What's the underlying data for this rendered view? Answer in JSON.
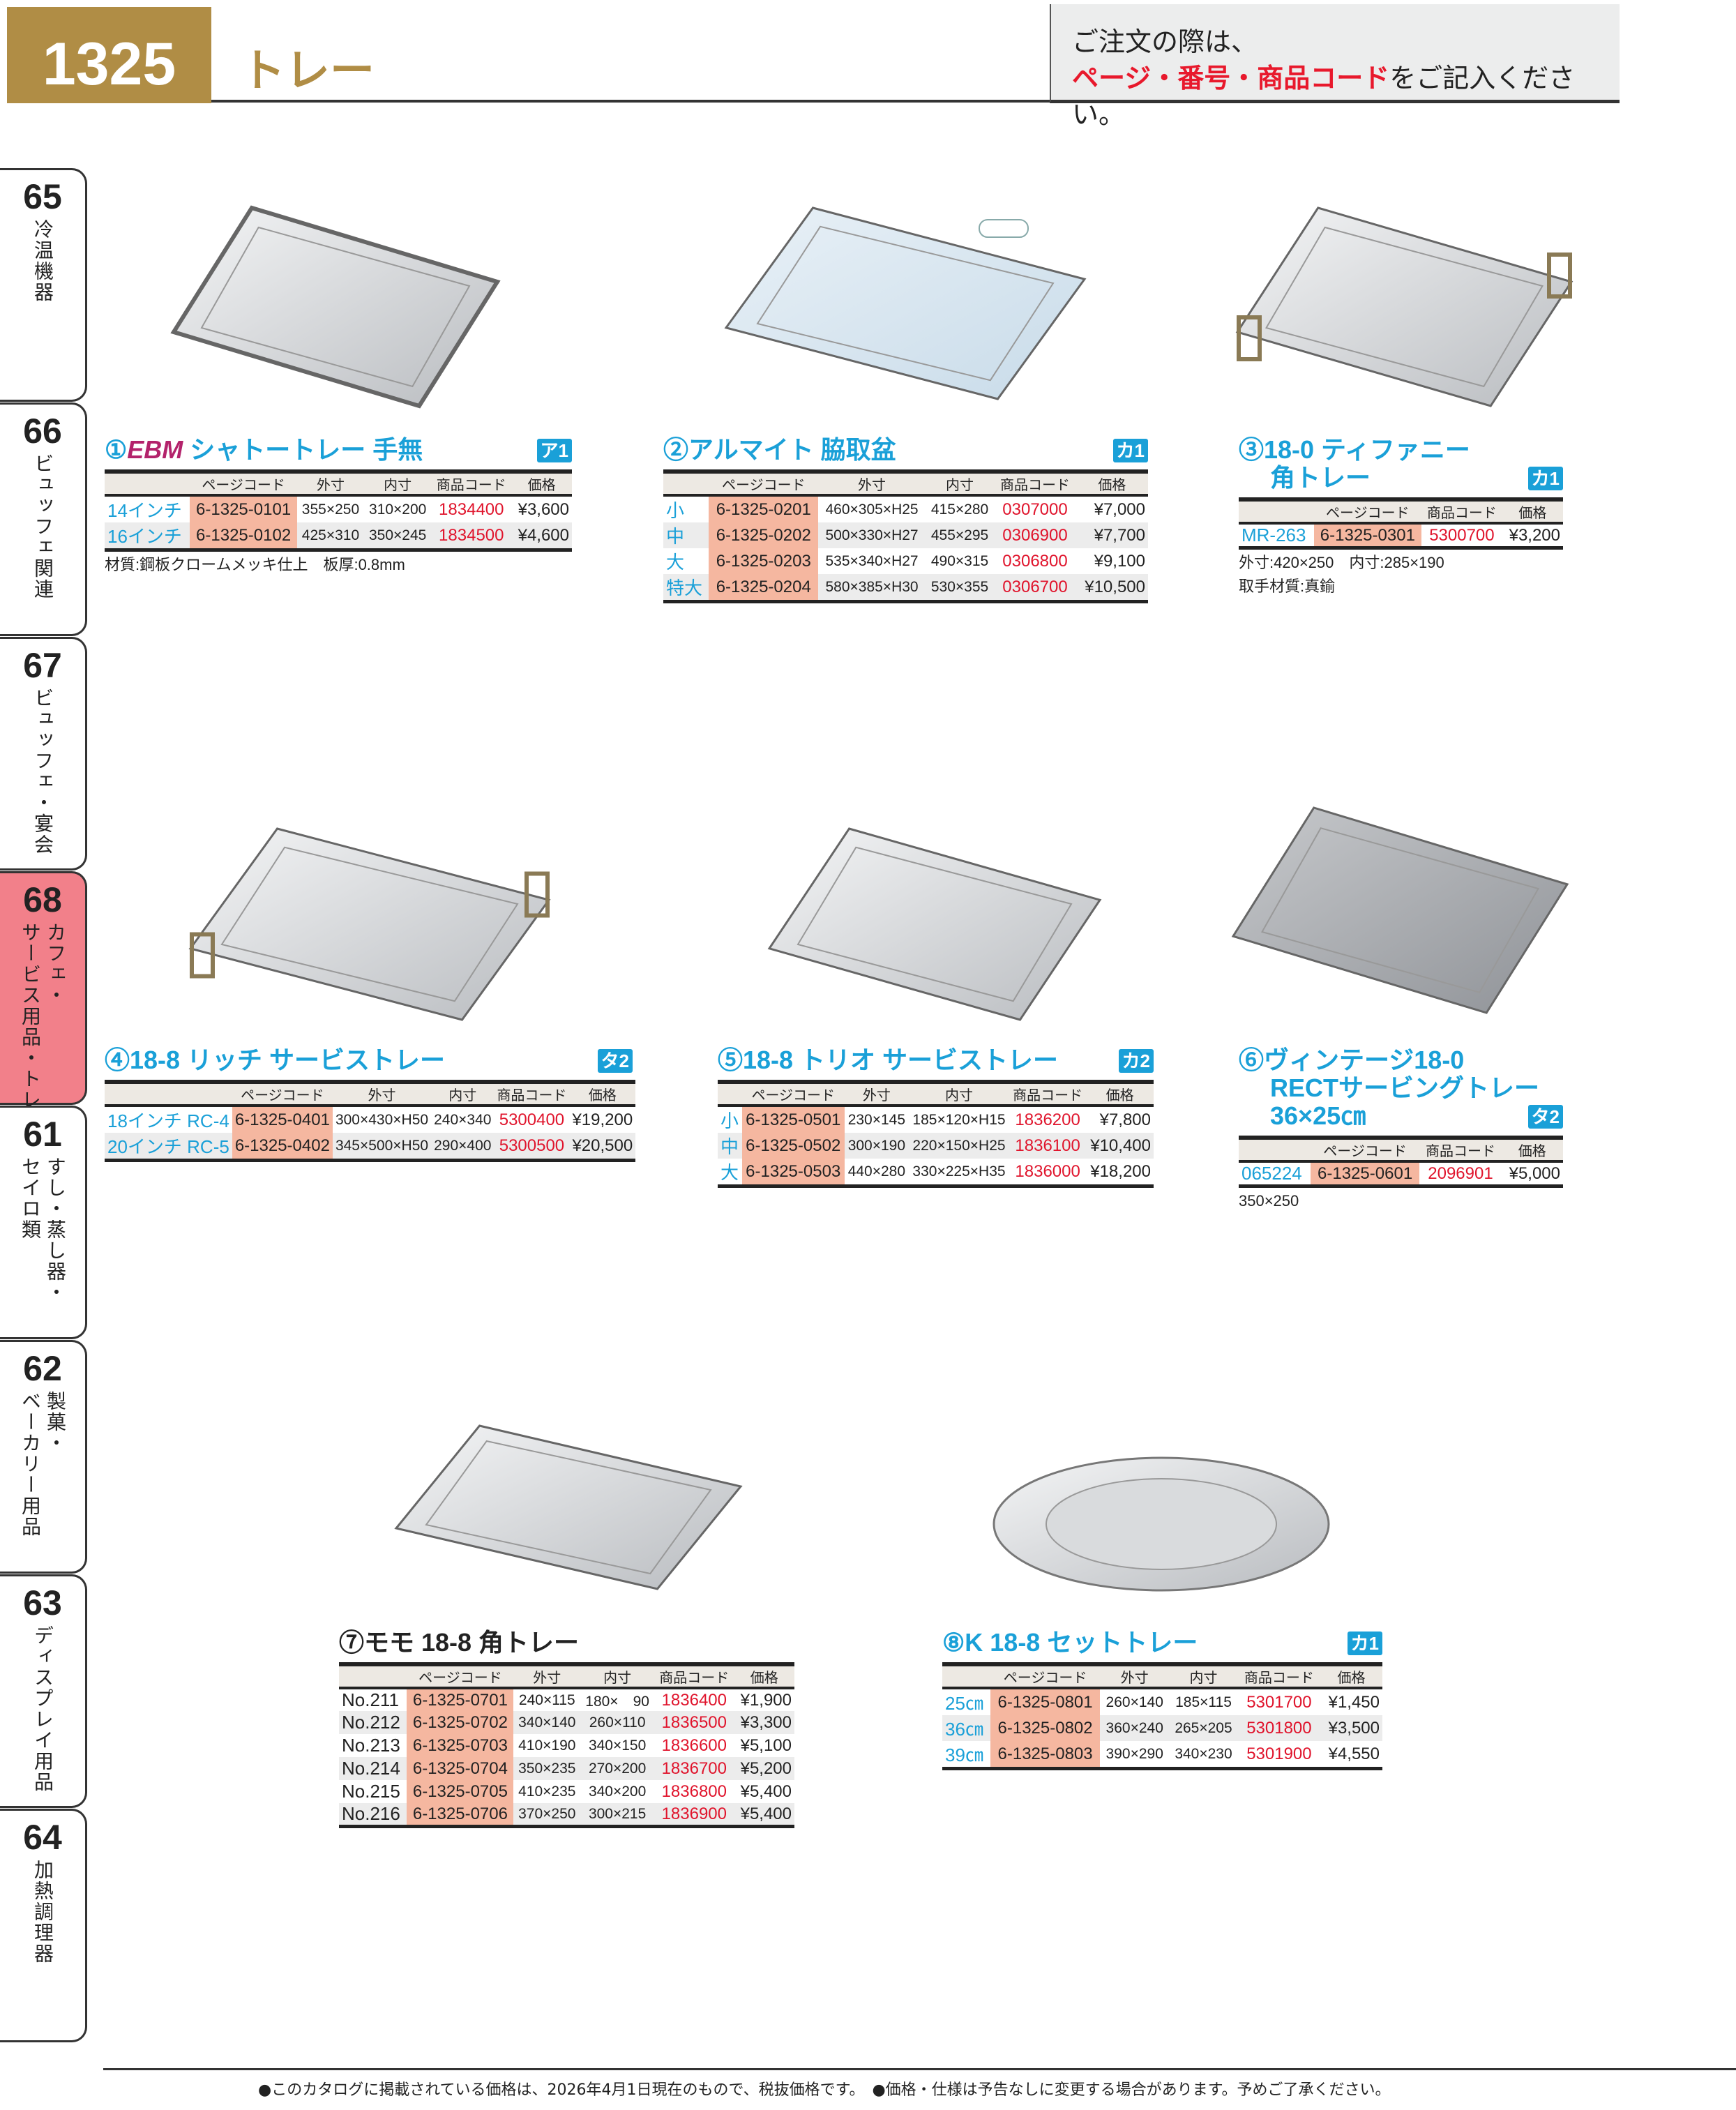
{
  "header": {
    "page_number": "1325",
    "title": "トレー",
    "notice_line1": "ご注文の際は、",
    "notice_red": "ページ・番号・商品コード",
    "notice_rest": "をご記入ください。"
  },
  "sidebar": [
    {
      "num": "65",
      "cols": [
        "冷温機器"
      ]
    },
    {
      "num": "66",
      "cols": [
        "ビュッフェ関連"
      ]
    },
    {
      "num": "67",
      "cols": [
        "ビュッフェ・宴会"
      ]
    },
    {
      "num": "68",
      "cols": [
        "カフェ・",
        "サービス用品・トレー"
      ],
      "active": true
    },
    {
      "num": "61",
      "cols": [
        "すし・蒸し器・",
        "セイロ類"
      ]
    },
    {
      "num": "62",
      "cols": [
        "製菓・",
        "ベーカリー用品"
      ]
    },
    {
      "num": "63",
      "cols": [
        "ディスプレイ用品"
      ]
    },
    {
      "num": "64",
      "cols": [
        "加熱調理器"
      ]
    }
  ],
  "colors": {
    "accent": "#1aa0d8",
    "gold": "#b08d45",
    "code_red": "#e0142c",
    "page_code_bg": "#f5b7a0",
    "active_tab": "#f2808a"
  },
  "products": [
    {
      "title": [
        [
          "①",
          ""
        ],
        [
          "EBM",
          "brand"
        ],
        [
          " シャトートレー 手無",
          ""
        ]
      ],
      "badge": "ア1",
      "columns": [
        "",
        "ページコード",
        "外寸",
        "内寸",
        "商品コード",
        "価格"
      ],
      "rows": [
        [
          "14インチ",
          "6-1325-0101",
          "355×250",
          "310×200",
          "1834400",
          "¥3,600"
        ],
        [
          "16インチ",
          "6-1325-0102",
          "425×310",
          "350×245",
          "1834500",
          "¥4,600"
        ]
      ],
      "notes": [
        "材質:鋼板クロームメッキ仕上　板厚:0.8mm"
      ]
    },
    {
      "title": [
        [
          "②アルマイト 脇取盆",
          ""
        ]
      ],
      "badge": "カ1",
      "columns": [
        "",
        "ページコード",
        "外寸",
        "内寸",
        "商品コード",
        "価格"
      ],
      "rows": [
        [
          "小",
          "6-1325-0201",
          "460×305×H25",
          "415×280",
          "0307000",
          "¥7,000"
        ],
        [
          "中",
          "6-1325-0202",
          "500×330×H27",
          "455×295",
          "0306900",
          "¥7,700"
        ],
        [
          "大",
          "6-1325-0203",
          "535×340×H27",
          "490×315",
          "0306800",
          "¥9,100"
        ],
        [
          "特大",
          "6-1325-0204",
          "580×385×H30",
          "530×355",
          "0306700",
          "¥10,500"
        ]
      ],
      "notes": []
    },
    {
      "title": [
        [
          "③18-0 ティファニー",
          ""
        ],
        [
          "角トレー",
          "indent-line"
        ]
      ],
      "badge": "カ1",
      "columns": [
        "",
        "ページコード",
        "商品コード",
        "価格"
      ],
      "rows": [
        [
          "MR-263",
          "6-1325-0301",
          "5300700",
          "¥3,200"
        ]
      ],
      "notes": [
        "外寸:420×250　内寸:285×190",
        "取手材質:真鍮"
      ]
    },
    {
      "title": [
        [
          "④18-8 リッチ サービストレー",
          ""
        ]
      ],
      "badge": "タ2",
      "columns": [
        "",
        "ページコード",
        "外寸",
        "内寸",
        "商品コード",
        "価格"
      ],
      "rows": [
        [
          "18インチ RC-4",
          "6-1325-0401",
          "300×430×H50",
          "240×340",
          "5300400",
          "¥19,200"
        ],
        [
          "20インチ RC-5",
          "6-1325-0402",
          "345×500×H50",
          "290×400",
          "5300500",
          "¥20,500"
        ]
      ],
      "notes": []
    },
    {
      "title": [
        [
          "⑤18-8 トリオ サービストレー",
          ""
        ]
      ],
      "badge": "カ2",
      "columns": [
        "",
        "ページコード",
        "外寸",
        "内寸",
        "商品コード",
        "価格"
      ],
      "rows": [
        [
          "小",
          "6-1325-0501",
          "230×145",
          "185×120×H15",
          "1836200",
          "¥7,800"
        ],
        [
          "中",
          "6-1325-0502",
          "300×190",
          "220×150×H25",
          "1836100",
          "¥10,400"
        ],
        [
          "大",
          "6-1325-0503",
          "440×280",
          "330×225×H35",
          "1836000",
          "¥18,200"
        ]
      ],
      "notes": []
    },
    {
      "title": [
        [
          "⑥ヴィンテージ18-0",
          ""
        ],
        [
          "RECTサービングトレー",
          "indent-line"
        ],
        [
          "36×25㎝",
          "indent-line"
        ]
      ],
      "badge": "タ2",
      "columns": [
        "",
        "ページコード",
        "商品コード",
        "価格"
      ],
      "rows": [
        [
          "065224",
          "6-1325-0601",
          "2096901",
          "¥5,000"
        ]
      ],
      "notes": [
        "350×250"
      ]
    },
    {
      "title": [
        [
          "⑦モモ 18-8 角トレー",
          ""
        ]
      ],
      "badge": "",
      "black": true,
      "columns": [
        "",
        "ページコード",
        "外寸",
        "内寸",
        "商品コード",
        "価格"
      ],
      "rows": [
        [
          "No.211",
          "6-1325-0701",
          "240×115",
          "180×　90",
          "1836400",
          "¥1,900"
        ],
        [
          "No.212",
          "6-1325-0702",
          "340×140",
          "260×110",
          "1836500",
          "¥3,300"
        ],
        [
          "No.213",
          "6-1325-0703",
          "410×190",
          "340×150",
          "1836600",
          "¥5,100"
        ],
        [
          "No.214",
          "6-1325-0704",
          "350×235",
          "270×200",
          "1836700",
          "¥5,200"
        ],
        [
          "No.215",
          "6-1325-0705",
          "410×235",
          "340×200",
          "1836800",
          "¥5,400"
        ],
        [
          "No.216",
          "6-1325-0706",
          "370×250",
          "300×215",
          "1836900",
          "¥5,400"
        ]
      ],
      "notes": [],
      "label_black": true
    },
    {
      "title": [
        [
          "⑧K 18-8 セットトレー",
          ""
        ]
      ],
      "badge": "カ1",
      "columns": [
        "",
        "ページコード",
        "外寸",
        "内寸",
        "商品コード",
        "価格"
      ],
      "rows": [
        [
          "25㎝",
          "6-1325-0801",
          "260×140",
          "185×115",
          "5301700",
          "¥1,450"
        ],
        [
          "36㎝",
          "6-1325-0802",
          "360×240",
          "265×205",
          "5301800",
          "¥3,500"
        ],
        [
          "39㎝",
          "6-1325-0803",
          "390×290",
          "340×230",
          "5301900",
          "¥4,550"
        ]
      ],
      "notes": []
    }
  ],
  "footer": "●このカタログに掲載されている価格は、2026年4月1日現在のもので、税抜価格です。　●価格・仕様は予告なしに変更する場合があります。予めご了承ください。"
}
